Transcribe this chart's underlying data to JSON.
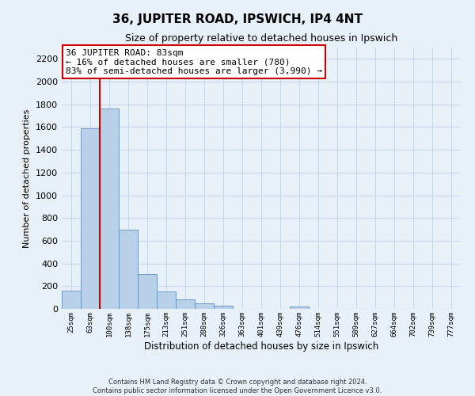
{
  "title": "36, JUPITER ROAD, IPSWICH, IP4 4NT",
  "subtitle": "Size of property relative to detached houses in Ipswich",
  "xlabel": "Distribution of detached houses by size in Ipswich",
  "ylabel": "Number of detached properties",
  "categories": [
    "25sqm",
    "63sqm",
    "100sqm",
    "138sqm",
    "175sqm",
    "213sqm",
    "251sqm",
    "288sqm",
    "326sqm",
    "363sqm",
    "401sqm",
    "439sqm",
    "476sqm",
    "514sqm",
    "551sqm",
    "589sqm",
    "627sqm",
    "664sqm",
    "702sqm",
    "739sqm",
    "777sqm"
  ],
  "values": [
    160,
    1590,
    1760,
    700,
    310,
    155,
    85,
    50,
    30,
    0,
    0,
    0,
    20,
    0,
    0,
    0,
    0,
    0,
    0,
    0,
    0
  ],
  "bar_color": "#b8d0e8",
  "bar_edge_color": "#6090c0",
  "highlight_color": "#cc0000",
  "vline_index": 1,
  "annotation_text": "36 JUPITER ROAD: 83sqm\n← 16% of detached houses are smaller (780)\n83% of semi-detached houses are larger (3,990) →",
  "annotation_box_color": "#ffffff",
  "annotation_border_color": "#cc0000",
  "ylim": [
    0,
    2300
  ],
  "yticks": [
    0,
    200,
    400,
    600,
    800,
    1000,
    1200,
    1400,
    1600,
    1800,
    2000,
    2200
  ],
  "grid_color": "#c8d8ec",
  "background_color": "#e8f0f8",
  "footer_line1": "Contains HM Land Registry data © Crown copyright and database right 2024.",
  "footer_line2": "Contains public sector information licensed under the Open Government Licence v3.0."
}
